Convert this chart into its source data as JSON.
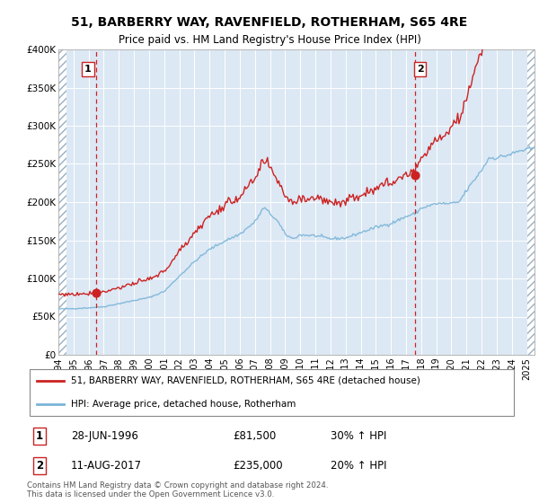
{
  "title1": "51, BARBERRY WAY, RAVENFIELD, ROTHERHAM, S65 4RE",
  "title2": "Price paid vs. HM Land Registry's House Price Index (HPI)",
  "legend_label1": "51, BARBERRY WAY, RAVENFIELD, ROTHERHAM, S65 4RE (detached house)",
  "legend_label2": "HPI: Average price, detached house, Rotherham",
  "annotation1_label": "1",
  "annotation1_date": "28-JUN-1996",
  "annotation1_price": "£81,500",
  "annotation1_hpi": "30% ↑ HPI",
  "annotation2_label": "2",
  "annotation2_date": "11-AUG-2017",
  "annotation2_price": "£235,000",
  "annotation2_hpi": "20% ↑ HPI",
  "footer": "Contains HM Land Registry data © Crown copyright and database right 2024.\nThis data is licensed under the Open Government Licence v3.0.",
  "sale1_year": 1996.49,
  "sale1_price": 81500,
  "sale2_year": 2017.61,
  "sale2_price": 235000,
  "hpi_color": "#7ab4d8",
  "price_color": "#cc2222",
  "marker_color": "#cc2222",
  "vline_color": "#cc2222",
  "background_color": "#dce8f4",
  "grid_color": "#ffffff",
  "ylim": [
    0,
    400000
  ],
  "xlim_start": 1994.0,
  "xlim_end": 2025.5
}
